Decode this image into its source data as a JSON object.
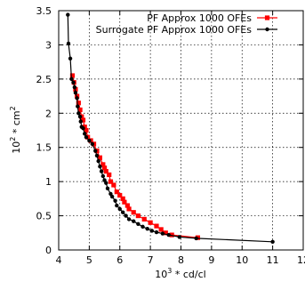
{
  "chart_data": {
    "type": "scatter",
    "xlabel_base": "10",
    "xlabel_exp": "3",
    "xlabel_rest": " * cd/cl",
    "ylabel_base": "10",
    "ylabel_exp": "2",
    "ylabel_rest": " * cm",
    "ylabel_exp2": "2",
    "xlim": [
      4,
      12
    ],
    "ylim": [
      0,
      3.5
    ],
    "xticks": [
      4,
      5,
      6,
      7,
      8,
      9,
      10,
      11,
      12
    ],
    "yticks": [
      0,
      0.5,
      1,
      1.5,
      2,
      2.5,
      3,
      3.5
    ],
    "xtick_labels": [
      "4",
      "5",
      "6",
      "7",
      "8",
      "9",
      "10",
      "11",
      "12"
    ],
    "ytick_labels": [
      "0",
      "0.5",
      "1",
      "1.5",
      "2",
      "2.5",
      "3",
      "3.5"
    ],
    "grid": true,
    "legend_position": "top-right",
    "series": [
      {
        "name": "PF Approx 1000 OFEs",
        "color": "#ff0000",
        "marker": "square",
        "points": [
          [
            4.45,
            2.55
          ],
          [
            4.5,
            2.45
          ],
          [
            4.55,
            2.35
          ],
          [
            4.6,
            2.25
          ],
          [
            4.65,
            2.15
          ],
          [
            4.7,
            2.05
          ],
          [
            4.75,
            1.95
          ],
          [
            4.8,
            1.9
          ],
          [
            4.85,
            1.8
          ],
          [
            4.9,
            1.75
          ],
          [
            4.95,
            1.65
          ],
          [
            5.05,
            1.6
          ],
          [
            5.15,
            1.55
          ],
          [
            5.25,
            1.45
          ],
          [
            5.35,
            1.35
          ],
          [
            5.45,
            1.25
          ],
          [
            5.5,
            1.2
          ],
          [
            5.55,
            1.15
          ],
          [
            5.65,
            1.1
          ],
          [
            5.7,
            1.0
          ],
          [
            5.8,
            0.95
          ],
          [
            5.9,
            0.85
          ],
          [
            6.0,
            0.8
          ],
          [
            6.1,
            0.75
          ],
          [
            6.15,
            0.7
          ],
          [
            6.25,
            0.65
          ],
          [
            6.3,
            0.6
          ],
          [
            6.45,
            0.55
          ],
          [
            6.6,
            0.5
          ],
          [
            6.8,
            0.45
          ],
          [
            7.0,
            0.4
          ],
          [
            7.2,
            0.35
          ],
          [
            7.35,
            0.3
          ],
          [
            7.5,
            0.25
          ],
          [
            7.7,
            0.22
          ],
          [
            8.55,
            0.18
          ]
        ]
      },
      {
        "name": "Surrogate PF Approx 1000 OFEs",
        "color": "#000000",
        "marker": "circle",
        "points": [
          [
            4.3,
            3.44
          ],
          [
            4.32,
            3.02
          ],
          [
            4.38,
            2.8
          ],
          [
            4.42,
            2.5
          ],
          [
            4.48,
            2.45
          ],
          [
            4.52,
            2.38
          ],
          [
            4.55,
            2.3
          ],
          [
            4.6,
            2.22
          ],
          [
            4.62,
            2.1
          ],
          [
            4.65,
            2.0
          ],
          [
            4.7,
            1.95
          ],
          [
            4.72,
            1.88
          ],
          [
            4.75,
            1.8
          ],
          [
            4.8,
            1.78
          ],
          [
            4.85,
            1.7
          ],
          [
            4.9,
            1.65
          ],
          [
            5.0,
            1.6
          ],
          [
            5.1,
            1.55
          ],
          [
            5.2,
            1.45
          ],
          [
            5.25,
            1.38
          ],
          [
            5.3,
            1.3
          ],
          [
            5.35,
            1.22
          ],
          [
            5.4,
            1.15
          ],
          [
            5.45,
            1.08
          ],
          [
            5.5,
            1.02
          ],
          [
            5.55,
            0.98
          ],
          [
            5.6,
            0.9
          ],
          [
            5.7,
            0.82
          ],
          [
            5.75,
            0.78
          ],
          [
            5.85,
            0.72
          ],
          [
            5.9,
            0.65
          ],
          [
            6.0,
            0.6
          ],
          [
            6.1,
            0.55
          ],
          [
            6.2,
            0.5
          ],
          [
            6.3,
            0.45
          ],
          [
            6.45,
            0.42
          ],
          [
            6.6,
            0.38
          ],
          [
            6.75,
            0.34
          ],
          [
            6.9,
            0.31
          ],
          [
            7.05,
            0.28
          ],
          [
            7.2,
            0.26
          ],
          [
            7.4,
            0.24
          ],
          [
            7.6,
            0.22
          ],
          [
            7.95,
            0.19
          ],
          [
            8.5,
            0.17
          ],
          [
            11.0,
            0.12
          ]
        ]
      }
    ]
  }
}
